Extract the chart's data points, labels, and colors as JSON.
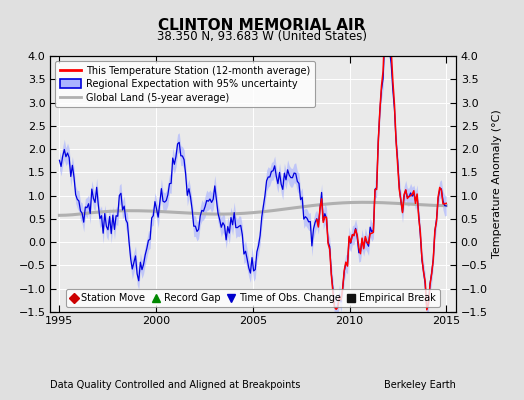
{
  "title": "CLINTON MEMORIAL AIR",
  "subtitle": "38.350 N, 93.683 W (United States)",
  "ylabel": "Temperature Anomaly (°C)",
  "xlabel_left": "Data Quality Controlled and Aligned at Breakpoints",
  "xlabel_right": "Berkeley Earth",
  "ylim": [
    -1.5,
    4.0
  ],
  "xlim": [
    1994.5,
    2015.5
  ],
  "xticks": [
    1995,
    2000,
    2005,
    2010,
    2015
  ],
  "yticks": [
    -1.5,
    -1,
    -0.5,
    0,
    0.5,
    1,
    1.5,
    2,
    2.5,
    3,
    3.5,
    4
  ],
  "background_color": "#e0e0e0",
  "plot_bg_color": "#eaeaea",
  "red_color": "#ff0000",
  "blue_color": "#0000dd",
  "blue_fill_color": "#aab4ff",
  "gray_color": "#b0b0b0",
  "legend_main": [
    "This Temperature Station (12-month average)",
    "Regional Expectation with 95% uncertainty",
    "Global Land (5-year average)"
  ],
  "legend_symbols": [
    "Station Move",
    "Record Gap",
    "Time of Obs. Change",
    "Empirical Break"
  ]
}
